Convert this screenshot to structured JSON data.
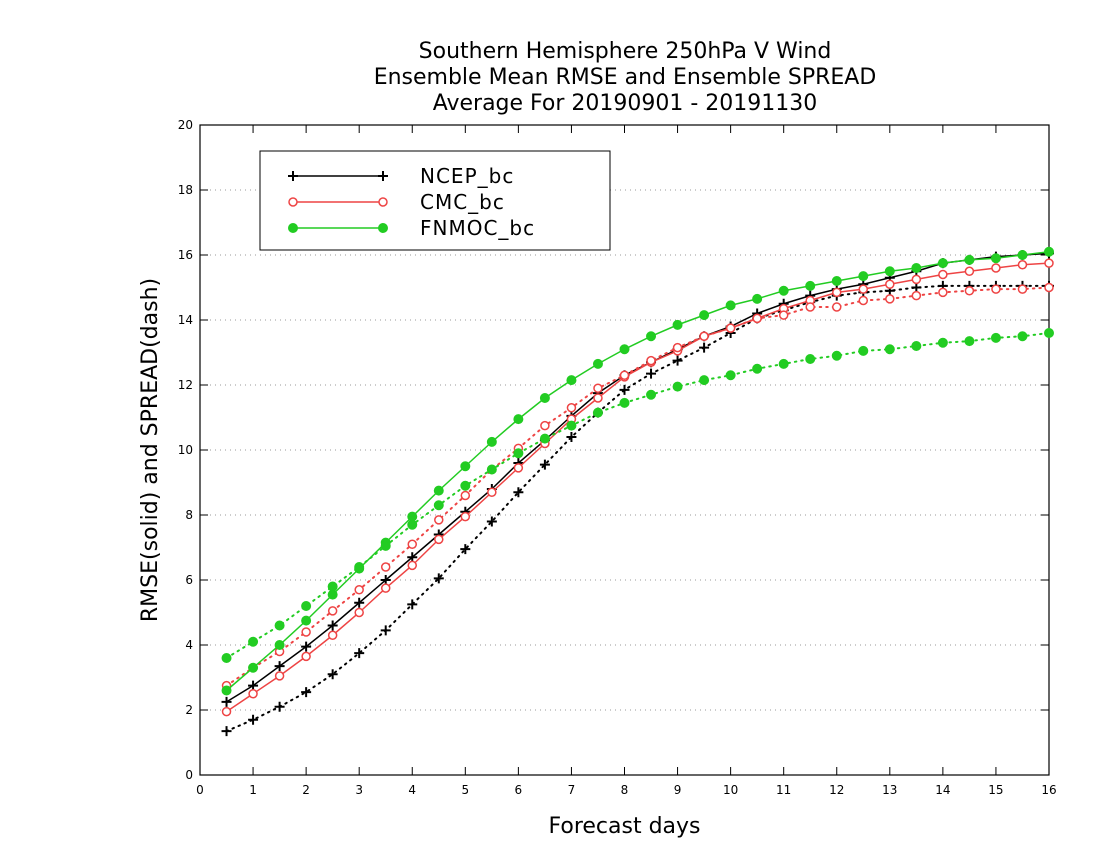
{
  "chart_data": {
    "type": "line",
    "title": [
      "Southern Hemisphere 250hPa V Wind",
      "Ensemble Mean RMSE and Ensemble SPREAD",
      "Average For 20190901 - 20191130"
    ],
    "xlabel": "Forecast days",
    "ylabel": "RMSE(solid) and SPREAD(dash)",
    "xlim": [
      0,
      16
    ],
    "ylim": [
      0,
      20
    ],
    "xticks": [
      0,
      1,
      2,
      3,
      4,
      5,
      6,
      7,
      8,
      9,
      10,
      11,
      12,
      13,
      14,
      15,
      16
    ],
    "yticks": [
      0,
      2,
      4,
      6,
      8,
      10,
      12,
      14,
      16,
      18,
      20
    ],
    "grid": "horizontal dotted",
    "legend_position": "top-left",
    "x": [
      0.5,
      1,
      1.5,
      2,
      2.5,
      3,
      3.5,
      4,
      4.5,
      5,
      5.5,
      6,
      6.5,
      7,
      7.5,
      8,
      8.5,
      9,
      9.5,
      10,
      10.5,
      11,
      11.5,
      12,
      12.5,
      13,
      13.5,
      14,
      14.5,
      15,
      15.5,
      16
    ],
    "series": [
      {
        "name": "NCEP_bc",
        "color": "#000000",
        "marker": "plus",
        "rmse": [
          2.25,
          2.75,
          3.35,
          3.95,
          4.6,
          5.3,
          6.0,
          6.7,
          7.4,
          8.1,
          8.8,
          9.6,
          10.3,
          11.05,
          11.75,
          12.3,
          12.7,
          13.1,
          13.5,
          13.8,
          14.2,
          14.5,
          14.75,
          14.95,
          15.1,
          15.3,
          15.5,
          15.75,
          15.85,
          15.95,
          16.0,
          16.05
        ],
        "spread": [
          1.35,
          1.7,
          2.1,
          2.55,
          3.1,
          3.75,
          4.45,
          5.25,
          6.05,
          6.95,
          7.8,
          8.7,
          9.55,
          10.4,
          11.15,
          11.85,
          12.35,
          12.75,
          13.15,
          13.6,
          14.05,
          14.3,
          14.55,
          14.75,
          14.85,
          14.9,
          15.0,
          15.05,
          15.05,
          15.05,
          15.05,
          15.05
        ]
      },
      {
        "name": "CMC_bc",
        "color": "#ee4444",
        "marker": "open-circle",
        "rmse": [
          1.95,
          2.5,
          3.05,
          3.65,
          4.3,
          5.0,
          5.75,
          6.45,
          7.25,
          7.95,
          8.7,
          9.45,
          10.2,
          10.95,
          11.6,
          12.25,
          12.7,
          13.05,
          13.5,
          13.75,
          14.05,
          14.35,
          14.6,
          14.85,
          14.95,
          15.1,
          15.25,
          15.4,
          15.5,
          15.6,
          15.7,
          15.75
        ],
        "spread": [
          2.75,
          3.3,
          3.8,
          4.4,
          5.05,
          5.7,
          6.4,
          7.1,
          7.85,
          8.6,
          9.4,
          10.05,
          10.75,
          11.3,
          11.9,
          12.3,
          12.75,
          13.15,
          13.5,
          13.75,
          14.05,
          14.15,
          14.4,
          14.4,
          14.6,
          14.65,
          14.75,
          14.85,
          14.9,
          14.95,
          14.95,
          15.0
        ]
      },
      {
        "name": "FNMOC_bc",
        "color": "#22cc22",
        "marker": "filled-circle",
        "rmse": [
          2.6,
          3.3,
          4.0,
          4.75,
          5.55,
          6.35,
          7.15,
          7.95,
          8.75,
          9.5,
          10.25,
          10.95,
          11.6,
          12.15,
          12.65,
          13.1,
          13.5,
          13.85,
          14.15,
          14.45,
          14.65,
          14.9,
          15.05,
          15.2,
          15.35,
          15.5,
          15.6,
          15.75,
          15.85,
          15.9,
          16.0,
          16.1
        ],
        "spread": [
          3.6,
          4.1,
          4.6,
          5.2,
          5.8,
          6.4,
          7.05,
          7.7,
          8.3,
          8.9,
          9.4,
          9.9,
          10.35,
          10.75,
          11.15,
          11.45,
          11.7,
          11.95,
          12.15,
          12.3,
          12.5,
          12.65,
          12.8,
          12.9,
          13.05,
          13.1,
          13.2,
          13.3,
          13.35,
          13.45,
          13.5,
          13.6
        ]
      }
    ]
  }
}
